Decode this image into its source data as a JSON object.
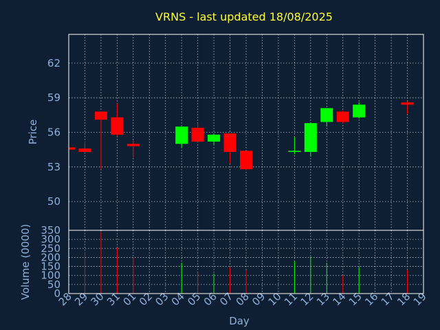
{
  "chart_data": {
    "type": "candlestick",
    "title": "VRNS - last updated 18/08/2025",
    "xlabel": "Day",
    "price_panel": {
      "ylabel": "Price",
      "yticks": [
        50,
        53,
        56,
        59,
        62
      ],
      "ylim": [
        47.5,
        64.5
      ]
    },
    "volume_panel": {
      "ylabel": "Volume (0000)",
      "yticks": [
        0,
        50,
        100,
        150,
        200,
        250,
        300,
        350
      ],
      "ylim": [
        0,
        350
      ]
    },
    "x_ticks": [
      "28",
      "29",
      "30",
      "31",
      "01",
      "02",
      "03",
      "04",
      "05",
      "06",
      "07",
      "08",
      "09",
      "10",
      "11",
      "12",
      "13",
      "14",
      "15",
      "16",
      "17",
      "18",
      "19"
    ],
    "up_color": "#00ff00",
    "down_color": "#ff0000",
    "candles": [
      {
        "day": "28",
        "open": 54.7,
        "close": 54.5,
        "high": 54.7,
        "low": 54.5,
        "volume": 0
      },
      {
        "day": "29",
        "open": 54.6,
        "close": 54.3,
        "high": 55.2,
        "low": 54.2,
        "volume": 230
      },
      {
        "day": "30",
        "open": 57.8,
        "close": 57.1,
        "high": 57.8,
        "low": 52.8,
        "volume": 340
      },
      {
        "day": "31",
        "open": 57.3,
        "close": 55.8,
        "high": 58.5,
        "low": 55.7,
        "volume": 255
      },
      {
        "day": "01",
        "open": 55.0,
        "close": 54.8,
        "high": 55.3,
        "low": 53.8,
        "volume": 200
      },
      {
        "day": "04",
        "open": 55.0,
        "close": 56.5,
        "high": 56.5,
        "low": 54.7,
        "volume": 170
      },
      {
        "day": "05",
        "open": 56.4,
        "close": 55.2,
        "high": 56.8,
        "low": 55.1,
        "volume": 120
      },
      {
        "day": "06",
        "open": 55.2,
        "close": 55.8,
        "high": 55.9,
        "low": 54.9,
        "volume": 110
      },
      {
        "day": "07",
        "open": 55.9,
        "close": 54.3,
        "high": 55.9,
        "low": 53.3,
        "volume": 145
      },
      {
        "day": "08",
        "open": 54.4,
        "close": 52.8,
        "high": 54.4,
        "low": 52.7,
        "volume": 130
      },
      {
        "day": "11",
        "open": 54.3,
        "close": 54.4,
        "high": 55.6,
        "low": 54.1,
        "volume": 180
      },
      {
        "day": "12",
        "open": 54.3,
        "close": 56.8,
        "high": 56.8,
        "low": 53.9,
        "volume": 205
      },
      {
        "day": "13",
        "open": 56.9,
        "close": 58.1,
        "high": 58.1,
        "low": 56.5,
        "volume": 170
      },
      {
        "day": "14",
        "open": 57.8,
        "close": 56.9,
        "high": 57.9,
        "low": 56.8,
        "volume": 100
      },
      {
        "day": "15",
        "open": 57.3,
        "close": 58.4,
        "high": 58.6,
        "low": 57.2,
        "volume": 145
      },
      {
        "day": "18",
        "open": 58.6,
        "close": 58.4,
        "high": 58.7,
        "low": 57.6,
        "volume": 130
      }
    ]
  }
}
